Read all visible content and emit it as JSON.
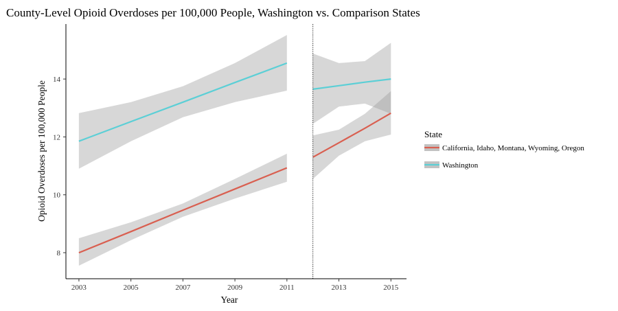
{
  "chart_data": {
    "type": "line",
    "title": "County-Level Opioid Overdoses per 100,000 People, Washington vs. Comparison States",
    "xlabel": "Year",
    "ylabel": "Opioid Overdoses per 100,000 People",
    "xlim": [
      2002.5,
      2015.6
    ],
    "ylim": [
      7.1,
      15.9
    ],
    "x_ticks": [
      2003,
      2005,
      2007,
      2009,
      2011,
      2013,
      2015
    ],
    "y_ticks": [
      8,
      10,
      12,
      14
    ],
    "grid": false,
    "vline": {
      "x": 2012,
      "style": "dotted"
    },
    "legend": {
      "title": "State",
      "position": "right",
      "entries": [
        {
          "label": "California, Idaho, Montana, Wyoming, Oregon",
          "color": "#d95f50"
        },
        {
          "label": "Washington",
          "color": "#5bcfd6"
        }
      ]
    },
    "series": [
      {
        "name": "California, Idaho, Montana, Wyoming, Oregon",
        "color": "#d95f50",
        "segments": [
          {
            "x": [
              2003,
              2005,
              2007,
              2009,
              2011
            ],
            "y": [
              8.0,
              8.73,
              9.47,
              10.2,
              10.93
            ],
            "lower": [
              7.55,
              8.43,
              9.24,
              9.87,
              10.45
            ],
            "upper": [
              8.5,
              9.05,
              9.7,
              10.55,
              11.42
            ]
          },
          {
            "x": [
              2012,
              2013,
              2014,
              2015
            ],
            "y": [
              11.3,
              11.8,
              12.3,
              12.82
            ],
            "lower": [
              10.55,
              11.35,
              11.85,
              12.08
            ],
            "upper": [
              12.05,
              12.25,
              12.8,
              13.58
            ]
          }
        ]
      },
      {
        "name": "Washington",
        "color": "#5bcfd6",
        "segments": [
          {
            "x": [
              2003,
              2005,
              2007,
              2009,
              2011
            ],
            "y": [
              11.85,
              12.53,
              13.2,
              13.88,
              14.55
            ],
            "lower": [
              10.9,
              11.85,
              12.68,
              13.2,
              13.6
            ],
            "upper": [
              12.82,
              13.2,
              13.75,
              14.55,
              15.52
            ]
          },
          {
            "x": [
              2012,
              2013,
              2014,
              2015
            ],
            "y": [
              13.65,
              13.77,
              13.89,
              14.0
            ],
            "lower": [
              12.45,
              13.05,
              13.15,
              12.8
            ],
            "upper": [
              14.88,
              14.55,
              14.62,
              15.25
            ]
          }
        ]
      }
    ]
  }
}
